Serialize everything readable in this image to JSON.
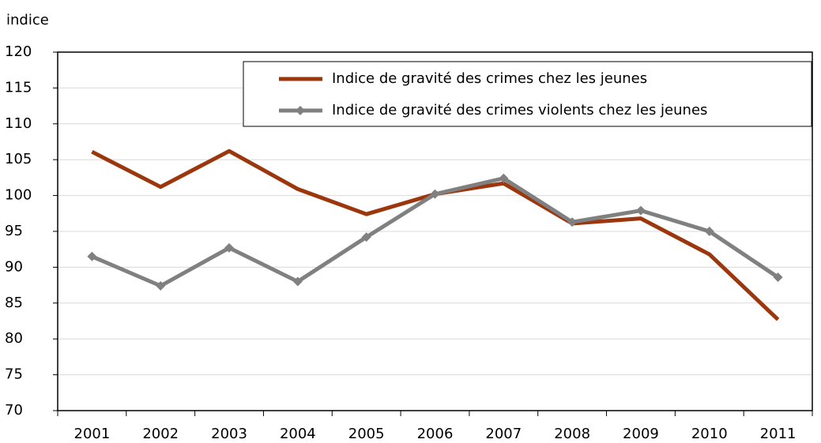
{
  "chart_data": {
    "type": "line",
    "y_label": "indice",
    "categories": [
      "2001",
      "2002",
      "2003",
      "2004",
      "2005",
      "2006",
      "2007",
      "2008",
      "2009",
      "2010",
      "2011"
    ],
    "series": [
      {
        "name": "Indice de gravité des crimes chez les jeunes",
        "color": "#9c360c",
        "marker": "none",
        "values": [
          106.1,
          101.2,
          106.2,
          100.9,
          97.4,
          100.2,
          101.7,
          96.1,
          96.8,
          91.8,
          82.7
        ]
      },
      {
        "name": "Indice de gravité des crimes violents chez les jeunes",
        "color": "#808080",
        "marker": "diamond",
        "values": [
          91.5,
          87.4,
          92.7,
          88.0,
          94.2,
          100.2,
          102.4,
          96.3,
          97.9,
          95.0,
          88.6
        ]
      }
    ],
    "ylim": [
      70,
      120
    ],
    "yticks": [
      70,
      75,
      80,
      85,
      90,
      95,
      100,
      105,
      110,
      115,
      120
    ],
    "grid": true,
    "legend": "top-right"
  }
}
